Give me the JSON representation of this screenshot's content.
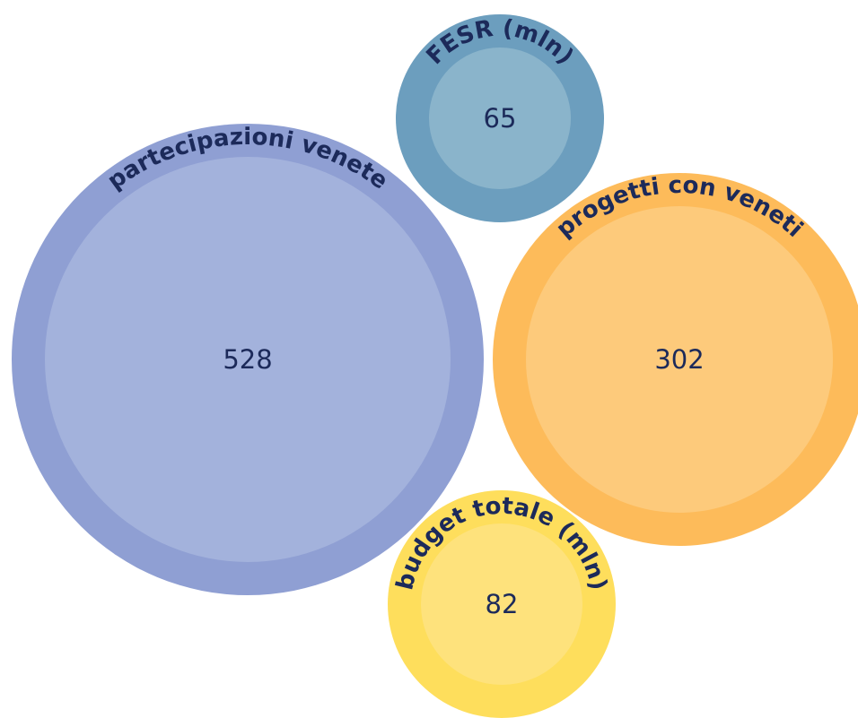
{
  "chart_data": {
    "type": "bubble",
    "bubbles": [
      {
        "label": "partecipazioni venete",
        "value": "528",
        "outer_color": "#8f9fd3",
        "inner_color": "#a3b2dc"
      },
      {
        "label": "progetti con veneti",
        "value": "302",
        "outer_color": "#fdbb5a",
        "inner_color": "#fdca7b"
      },
      {
        "label": "budget totale (mln)",
        "value": "82",
        "outer_color": "#fede5c",
        "inner_color": "#fee27c"
      },
      {
        "label": "FESR (mln)",
        "value": "65",
        "outer_color": "#6c9ebe",
        "inner_color": "#8ab4cb"
      }
    ]
  }
}
